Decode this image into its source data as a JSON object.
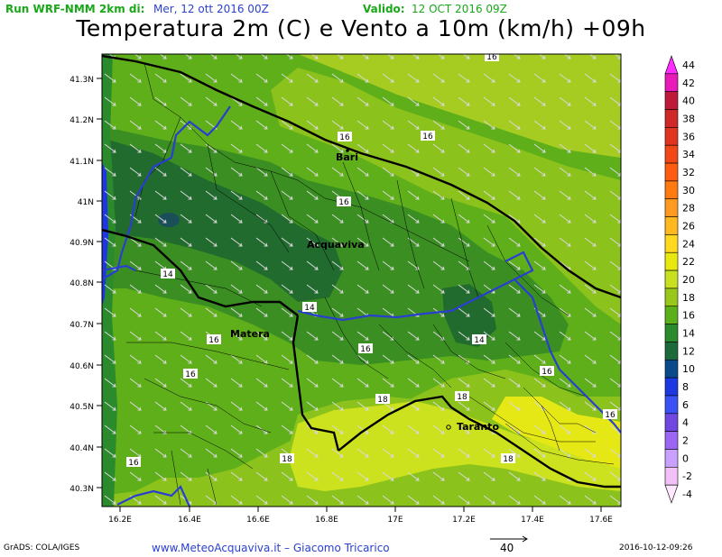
{
  "header": {
    "run_label": "Run WRF-NMM 2km di:",
    "run_date": "Mer, 12 ott 2016 00Z",
    "valid_label": "Valido:",
    "valid_date": "12 OCT 2016 09Z",
    "title": "Temperatura 2m (C) e Vento a 10m (km/h) +09h"
  },
  "map": {
    "lat_labels": [
      "41.3N",
      "41.2N",
      "41.1N",
      "41N",
      "40.9N",
      "40.8N",
      "40.7N",
      "40.6N",
      "40.5N",
      "40.4N",
      "40.3N"
    ],
    "lon_labels": [
      "16.2E",
      "16.4E",
      "16.6E",
      "16.8E",
      "17E",
      "17.2E",
      "17.4E",
      "17.6E"
    ],
    "cities": [
      "Bari",
      "Acquaviva",
      "Matera",
      "Taranto"
    ],
    "contour_labels": [
      "16",
      "16",
      "16",
      "16",
      "14",
      "14",
      "14",
      "16",
      "16",
      "16",
      "16",
      "16",
      "18",
      "18",
      "18",
      "16",
      "18",
      "16"
    ]
  },
  "colorbar": {
    "labels": [
      "44",
      "42",
      "40",
      "38",
      "36",
      "34",
      "32",
      "30",
      "28",
      "26",
      "24",
      "22",
      "20",
      "18",
      "16",
      "14",
      "12",
      "10",
      "8",
      "6",
      "4",
      "2",
      "0",
      "-2",
      "-4"
    ],
    "colors": [
      "#ff2cff",
      "#e81ab8",
      "#c01a3a",
      "#d02828",
      "#e03420",
      "#f24818",
      "#ff5c10",
      "#ff7a10",
      "#ff9a20",
      "#ffb820",
      "#ffd820",
      "#e8e810",
      "#c8e020",
      "#98c81a",
      "#5cb019",
      "#2a8a2c",
      "#1c6a3a",
      "#0a4a8a",
      "#1d38e0",
      "#3a52f5",
      "#7048e0",
      "#9a66f2",
      "#c8a0ff",
      "#f0c0f6",
      "#ffe8ff"
    ]
  },
  "footer": {
    "grads": "GrADS: COLA/IGES",
    "site": "www.MeteoAcquaviva.it  –  Giacomo Tricarico",
    "scale": "40",
    "timestamp": "2016-10-12-09:26"
  }
}
